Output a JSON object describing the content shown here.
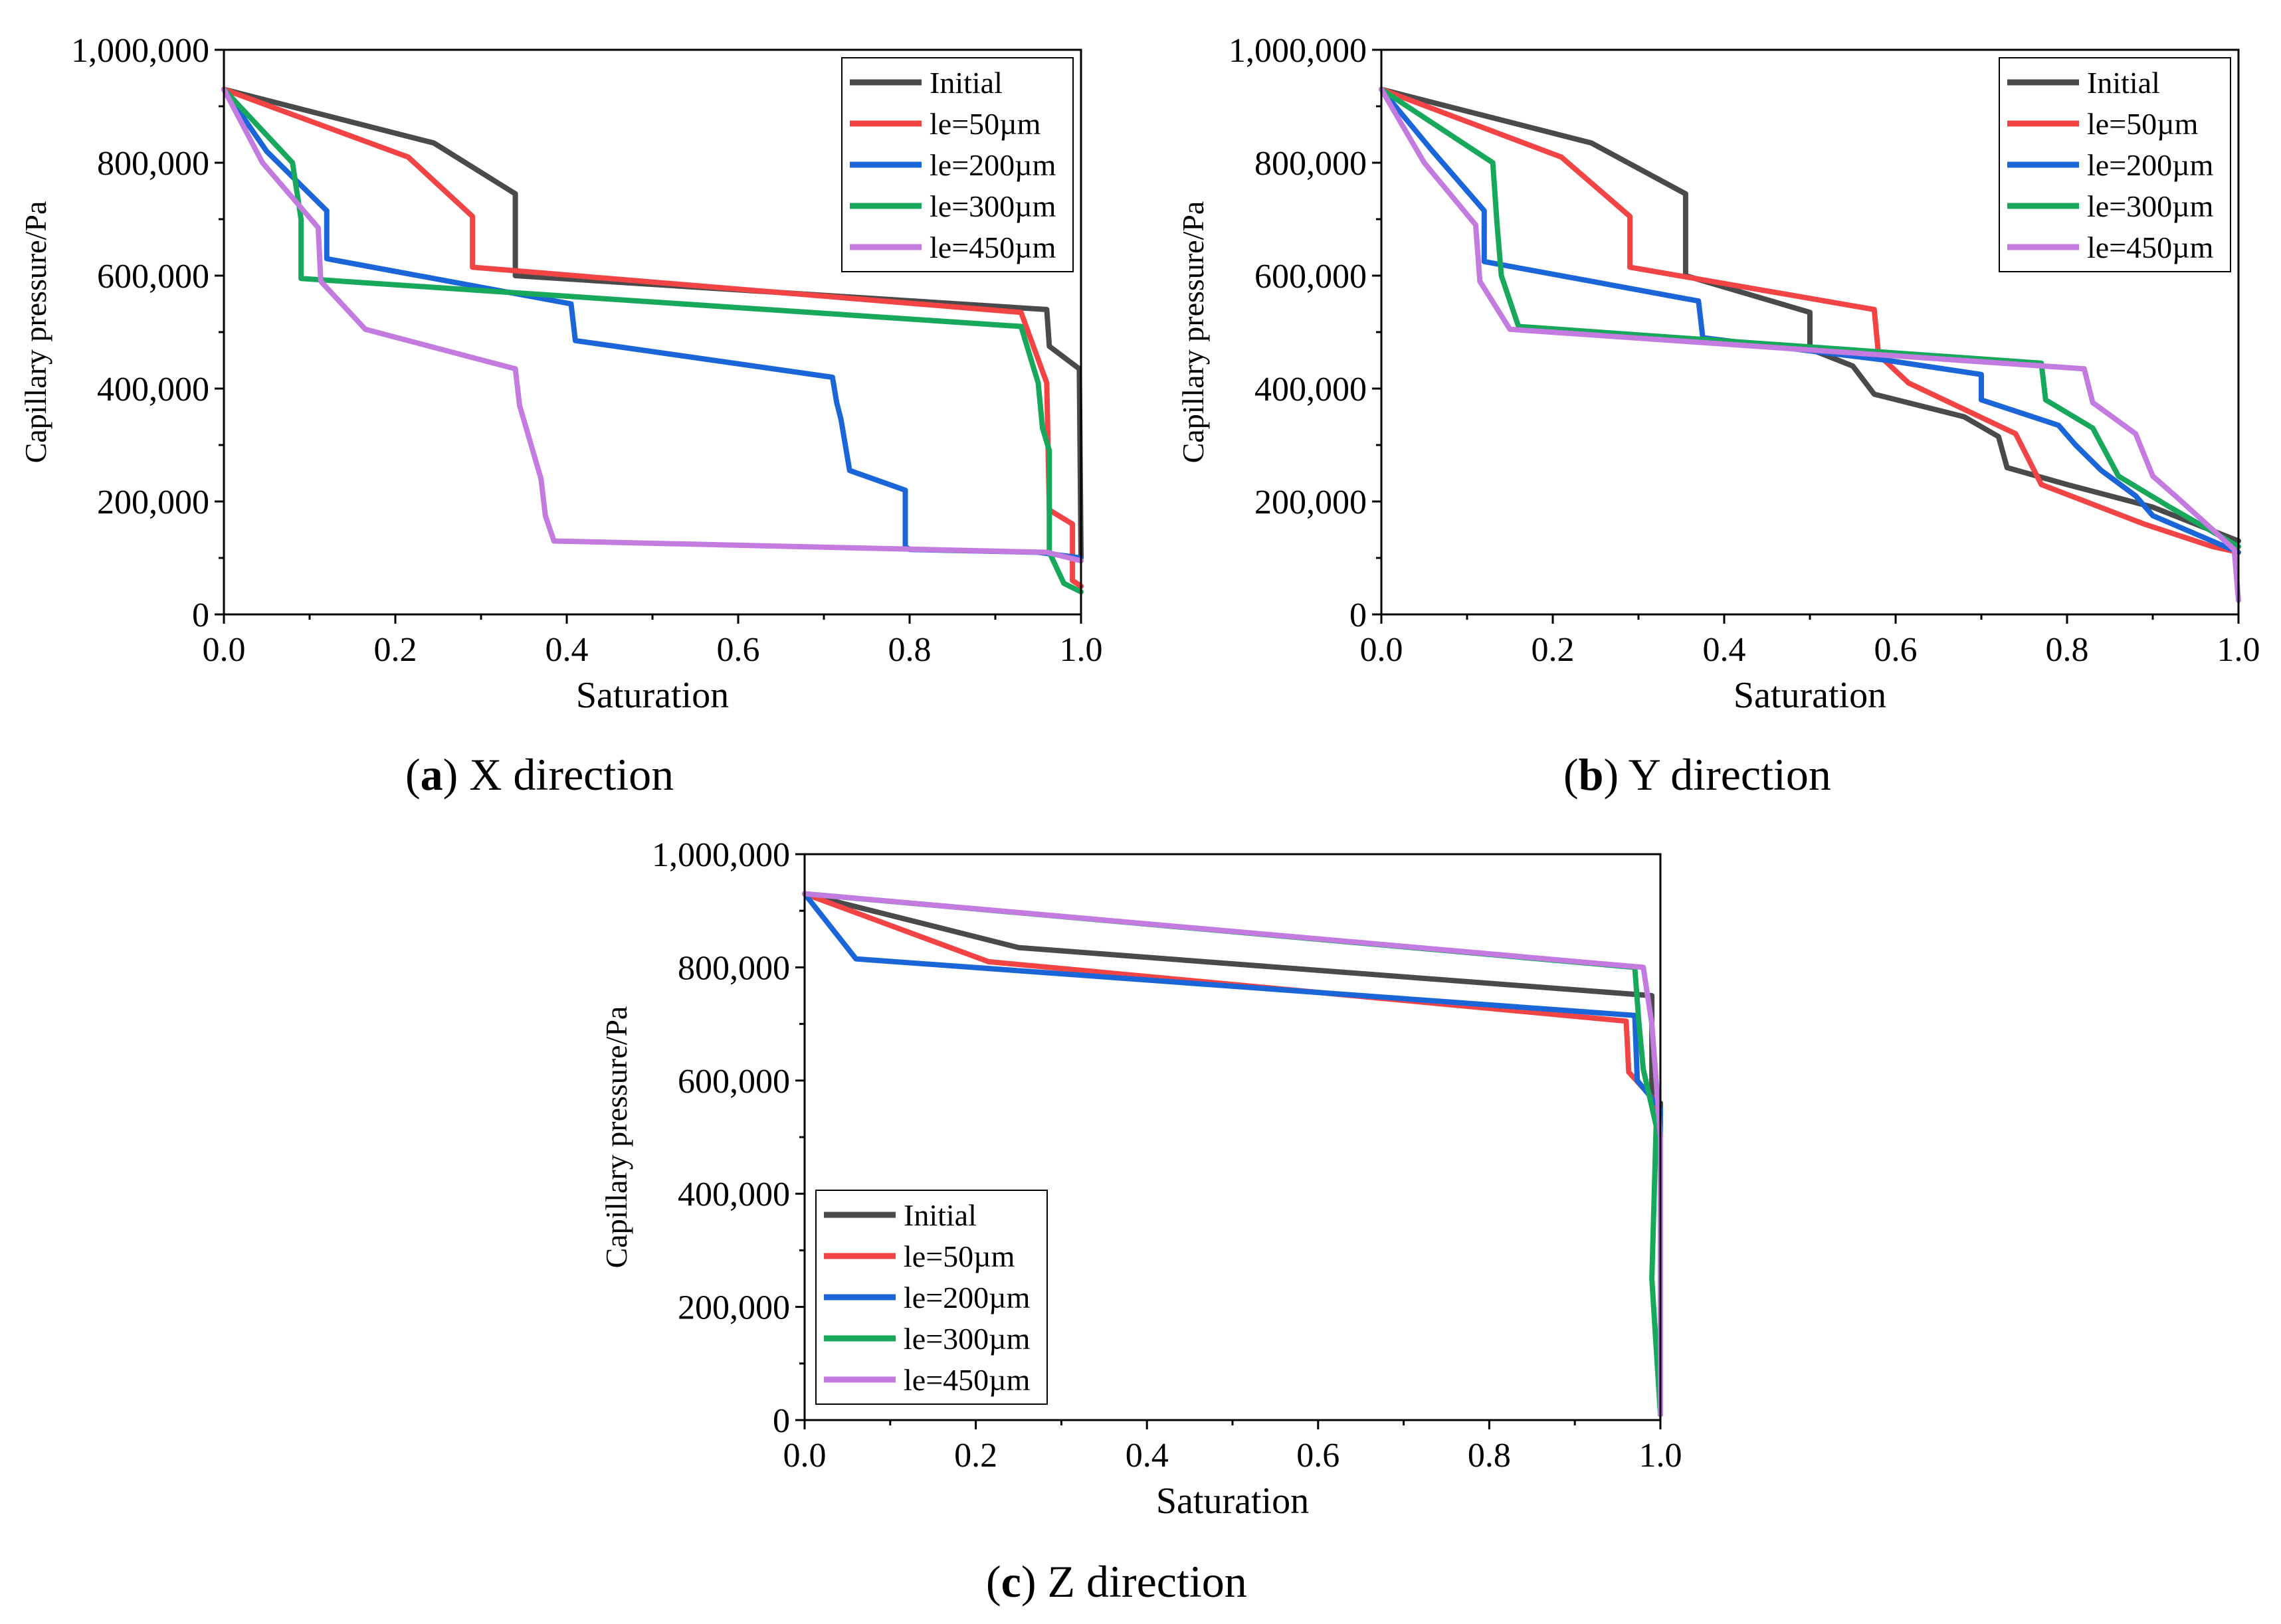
{
  "colors": {
    "Initial": "#4a4a4a",
    "le=50µm": "#f24444",
    "le=200µm": "#1a66d9",
    "le=300µm": "#17a85c",
    "le=450µm": "#c47be0"
  },
  "chart_data": [
    {
      "type": "line",
      "panel": "a",
      "caption_letter": "a",
      "caption_text": "X direction",
      "xlabel": "Saturation",
      "ylabel": "Capillary pressure/Pa",
      "xlim": [
        0,
        1
      ],
      "ylim": [
        0,
        1000000
      ],
      "xticks": [
        "0.0",
        "0.2",
        "0.4",
        "0.6",
        "0.8",
        "1.0"
      ],
      "yticks": [
        "0",
        "200,000",
        "400,000",
        "600,000",
        "800,000",
        "1,000,000"
      ],
      "legend_position": "top-right",
      "series": [
        {
          "name": "Initial",
          "points": [
            [
              0,
              930000
            ],
            [
              0.245,
              835000
            ],
            [
              0.34,
              745000
            ],
            [
              0.34,
              600000
            ],
            [
              0.96,
              540000
            ],
            [
              0.963,
              475000
            ],
            [
              0.998,
              435000
            ],
            [
              1.0,
              100000
            ]
          ]
        },
        {
          "name": "le=50µm",
          "points": [
            [
              0,
              930000
            ],
            [
              0.215,
              810000
            ],
            [
              0.29,
              705000
            ],
            [
              0.29,
              615000
            ],
            [
              0.93,
              535000
            ],
            [
              0.96,
              410000
            ],
            [
              0.963,
              185000
            ],
            [
              0.99,
              160000
            ],
            [
              0.99,
              60000
            ],
            [
              1.0,
              50000
            ]
          ]
        },
        {
          "name": "le=200µm",
          "points": [
            [
              0,
              930000
            ],
            [
              0.05,
              820000
            ],
            [
              0.12,
              715000
            ],
            [
              0.12,
              630000
            ],
            [
              0.405,
              550000
            ],
            [
              0.41,
              485000
            ],
            [
              0.71,
              420000
            ],
            [
              0.715,
              375000
            ],
            [
              0.72,
              345000
            ],
            [
              0.73,
              255000
            ],
            [
              0.795,
              220000
            ],
            [
              0.795,
              120000
            ],
            [
              0.8,
              115000
            ],
            [
              0.95,
              110000
            ],
            [
              1.0,
              100000
            ]
          ]
        },
        {
          "name": "le=300µm",
          "points": [
            [
              0,
              930000
            ],
            [
              0.08,
              800000
            ],
            [
              0.09,
              700000
            ],
            [
              0.09,
              595000
            ],
            [
              0.93,
              510000
            ],
            [
              0.95,
              410000
            ],
            [
              0.955,
              330000
            ],
            [
              0.963,
              290000
            ],
            [
              0.963,
              110000
            ],
            [
              0.98,
              55000
            ],
            [
              1.0,
              40000
            ]
          ]
        },
        {
          "name": "le=450µm",
          "points": [
            [
              0,
              930000
            ],
            [
              0.045,
              800000
            ],
            [
              0.11,
              685000
            ],
            [
              0.113,
              590000
            ],
            [
              0.165,
              505000
            ],
            [
              0.34,
              435000
            ],
            [
              0.345,
              370000
            ],
            [
              0.37,
              240000
            ],
            [
              0.375,
              175000
            ],
            [
              0.385,
              130000
            ],
            [
              0.96,
              110000
            ],
            [
              1.0,
              95000
            ]
          ]
        }
      ]
    },
    {
      "type": "line",
      "panel": "b",
      "caption_letter": "b",
      "caption_text": "Y direction",
      "xlabel": "Saturation",
      "ylabel": "Capillary pressure/Pa",
      "xlim": [
        0,
        1
      ],
      "ylim": [
        0,
        1000000
      ],
      "xticks": [
        "0.0",
        "0.2",
        "0.4",
        "0.6",
        "0.8",
        "1.0"
      ],
      "yticks": [
        "0",
        "200,000",
        "400,000",
        "600,000",
        "800,000",
        "1,000,000"
      ],
      "legend_position": "top-right",
      "series": [
        {
          "name": "Initial",
          "points": [
            [
              0,
              930000
            ],
            [
              0.245,
              835000
            ],
            [
              0.355,
              745000
            ],
            [
              0.355,
              600000
            ],
            [
              0.5,
              535000
            ],
            [
              0.5,
              470000
            ],
            [
              0.55,
              440000
            ],
            [
              0.575,
              390000
            ],
            [
              0.68,
              350000
            ],
            [
              0.72,
              315000
            ],
            [
              0.73,
              260000
            ],
            [
              0.8,
              230000
            ],
            [
              0.9,
              190000
            ],
            [
              1.0,
              130000
            ]
          ]
        },
        {
          "name": "le=50µm",
          "points": [
            [
              0,
              930000
            ],
            [
              0.21,
              810000
            ],
            [
              0.29,
              705000
            ],
            [
              0.29,
              615000
            ],
            [
              0.575,
              540000
            ],
            [
              0.58,
              460000
            ],
            [
              0.615,
              410000
            ],
            [
              0.74,
              320000
            ],
            [
              0.77,
              230000
            ],
            [
              0.89,
              160000
            ],
            [
              0.97,
              120000
            ],
            [
              1.0,
              110000
            ]
          ]
        },
        {
          "name": "le=200µm",
          "points": [
            [
              0,
              930000
            ],
            [
              0.06,
              820000
            ],
            [
              0.12,
              715000
            ],
            [
              0.12,
              625000
            ],
            [
              0.37,
              555000
            ],
            [
              0.375,
              490000
            ],
            [
              0.59,
              450000
            ],
            [
              0.7,
              425000
            ],
            [
              0.7,
              380000
            ],
            [
              0.79,
              335000
            ],
            [
              0.81,
              300000
            ],
            [
              0.84,
              255000
            ],
            [
              0.88,
              210000
            ],
            [
              0.9,
              175000
            ],
            [
              1.0,
              110000
            ]
          ]
        },
        {
          "name": "le=300µm",
          "points": [
            [
              0,
              930000
            ],
            [
              0.13,
              800000
            ],
            [
              0.135,
              690000
            ],
            [
              0.14,
              600000
            ],
            [
              0.16,
              510000
            ],
            [
              0.77,
              445000
            ],
            [
              0.775,
              380000
            ],
            [
              0.83,
              330000
            ],
            [
              0.86,
              245000
            ],
            [
              0.92,
              190000
            ],
            [
              1.0,
              120000
            ]
          ]
        },
        {
          "name": "le=450µm",
          "points": [
            [
              0,
              930000
            ],
            [
              0.05,
              800000
            ],
            [
              0.11,
              690000
            ],
            [
              0.115,
              590000
            ],
            [
              0.15,
              505000
            ],
            [
              0.82,
              435000
            ],
            [
              0.83,
              375000
            ],
            [
              0.88,
              320000
            ],
            [
              0.9,
              245000
            ],
            [
              0.93,
              205000
            ],
            [
              0.97,
              150000
            ],
            [
              0.995,
              115000
            ],
            [
              1.0,
              25000
            ]
          ]
        }
      ]
    },
    {
      "type": "line",
      "panel": "c",
      "caption_letter": "c",
      "caption_text": "Z direction",
      "xlabel": "Saturation",
      "ylabel": "Capillary pressure/Pa",
      "xlim": [
        0,
        1
      ],
      "ylim": [
        0,
        1000000
      ],
      "xticks": [
        "0.0",
        "0.2",
        "0.4",
        "0.6",
        "0.8",
        "1.0"
      ],
      "yticks": [
        "0",
        "200,000",
        "400,000",
        "600,000",
        "800,000",
        "1,000,000"
      ],
      "legend_position": "bottom-left",
      "series": [
        {
          "name": "Initial",
          "points": [
            [
              0,
              930000
            ],
            [
              0.25,
              835000
            ],
            [
              0.99,
              750000
            ],
            [
              0.99,
              570000
            ],
            [
              1.0,
              560000
            ],
            [
              1.0,
              10000
            ]
          ]
        },
        {
          "name": "le=50µm",
          "points": [
            [
              0,
              930000
            ],
            [
              0.215,
              810000
            ],
            [
              0.96,
              705000
            ],
            [
              0.963,
              615000
            ],
            [
              0.99,
              570000
            ],
            [
              1.0,
              540000
            ],
            [
              1.0,
              10000
            ]
          ]
        },
        {
          "name": "le=200µm",
          "points": [
            [
              0,
              930000
            ],
            [
              0.06,
              815000
            ],
            [
              0.97,
              715000
            ],
            [
              0.973,
              600000
            ],
            [
              1.0,
              550000
            ],
            [
              1.0,
              10000
            ]
          ]
        },
        {
          "name": "le=300µm",
          "points": [
            [
              0,
              930000
            ],
            [
              0.97,
              800000
            ],
            [
              0.975,
              700000
            ],
            [
              0.98,
              620000
            ],
            [
              0.995,
              520000
            ],
            [
              0.99,
              250000
            ],
            [
              1.0,
              10000
            ]
          ]
        },
        {
          "name": "le=450µm",
          "points": [
            [
              0,
              930000
            ],
            [
              0.98,
              800000
            ],
            [
              0.99,
              700000
            ],
            [
              0.995,
              600000
            ],
            [
              1.0,
              500000
            ],
            [
              1.0,
              10000
            ]
          ]
        }
      ]
    }
  ]
}
